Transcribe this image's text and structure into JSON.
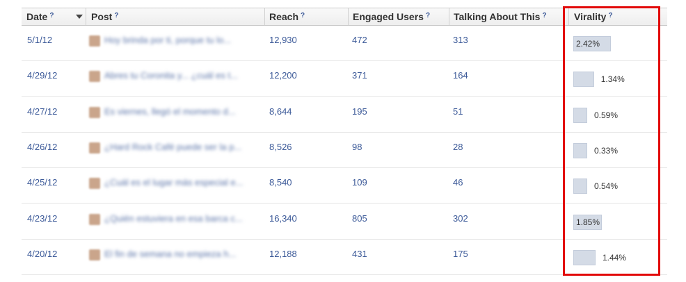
{
  "columns": {
    "date": "Date",
    "post": "Post",
    "reach": "Reach",
    "engaged": "Engaged Users",
    "talking": "Talking About This",
    "virality": "Virality",
    "help": "?"
  },
  "rows": [
    {
      "date": "5/1/12",
      "post": "Hoy brinda por ti, porque tu lo...",
      "reach": "12,930",
      "engaged": "472",
      "talking": "313",
      "virality": "2.42%",
      "virality_value": 2.42
    },
    {
      "date": "4/29/12",
      "post": "Abres tu Coronita y... ¿cuál es t...",
      "reach": "12,200",
      "engaged": "371",
      "talking": "164",
      "virality": "1.34%",
      "virality_value": 1.34
    },
    {
      "date": "4/27/12",
      "post": "Es viernes, llegó el momento d...",
      "reach": "8,644",
      "engaged": "195",
      "talking": "51",
      "virality": "0.59%",
      "virality_value": 0.59
    },
    {
      "date": "4/26/12",
      "post": "¿Hard Rock Café puede ser la p...",
      "reach": "8,526",
      "engaged": "98",
      "talking": "28",
      "virality": "0.33%",
      "virality_value": 0.33
    },
    {
      "date": "4/25/12",
      "post": "¿Cuál es el lugar más especial e...",
      "reach": "8,540",
      "engaged": "109",
      "talking": "46",
      "virality": "0.54%",
      "virality_value": 0.54
    },
    {
      "date": "4/23/12",
      "post": "¿Quién estuviera en esa barca c...",
      "reach": "16,340",
      "engaged": "805",
      "talking": "302",
      "virality": "1.85%",
      "virality_value": 1.85
    },
    {
      "date": "4/20/12",
      "post": "El fin de semana no empieza h...",
      "reach": "12,188",
      "engaged": "431",
      "talking": "175",
      "virality": "1.44%",
      "virality_value": 1.44
    }
  ],
  "colors": {
    "link": "#3b5998",
    "bar_fill": "#d4dbe6",
    "highlight": "#e20a0a"
  }
}
